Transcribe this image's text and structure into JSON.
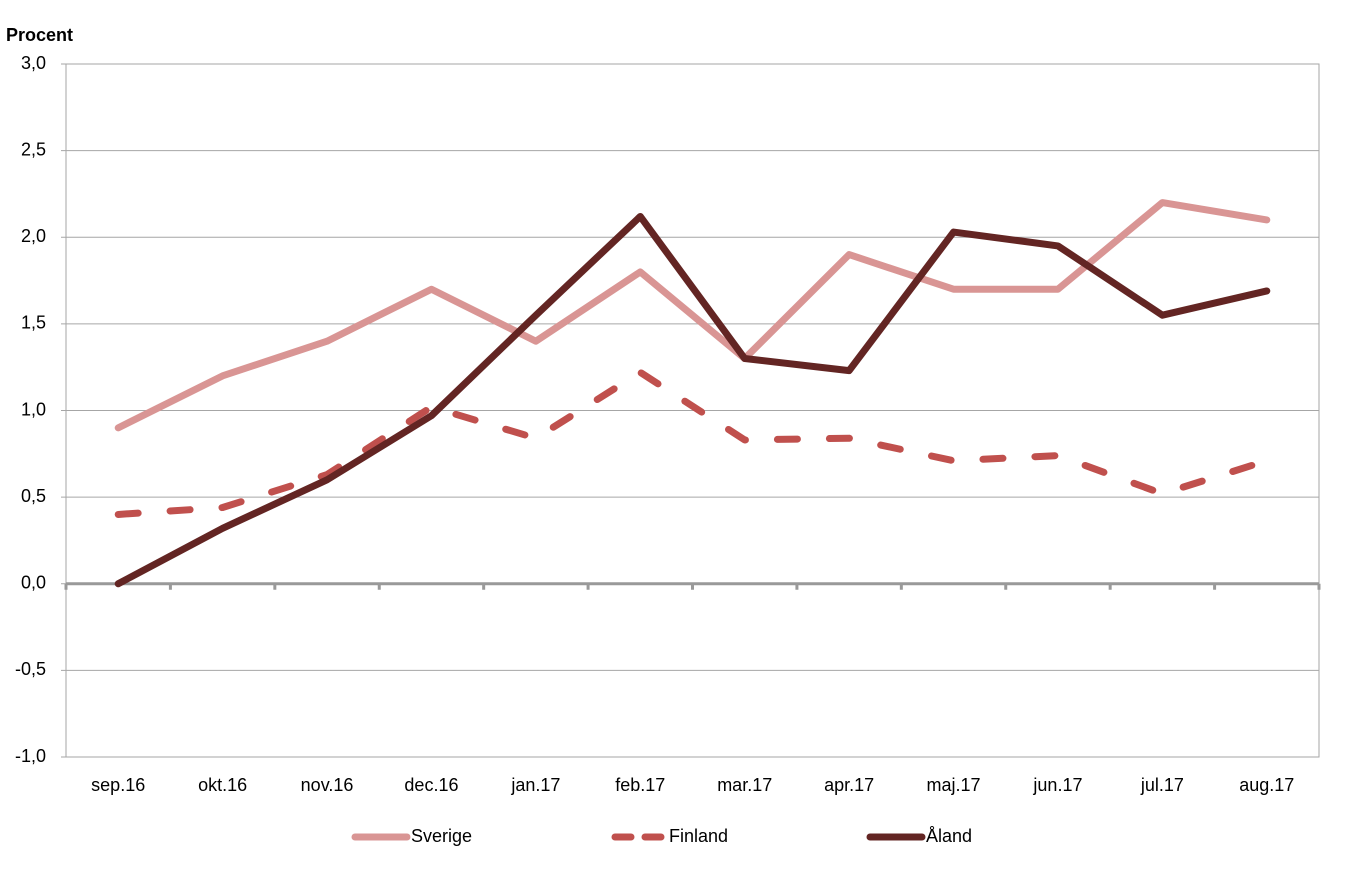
{
  "chart_data": {
    "type": "line",
    "y_label": "Procent",
    "categories": [
      "sep.16",
      "okt.16",
      "nov.16",
      "dec.16",
      "jan.17",
      "feb.17",
      "mar.17",
      "apr.17",
      "maj.17",
      "jun.17",
      "jul.17",
      "aug.17"
    ],
    "series": [
      {
        "name": "Sverige",
        "color": "#d99594",
        "style": "solid",
        "values": [
          0.9,
          1.2,
          1.4,
          1.7,
          1.4,
          1.8,
          1.3,
          1.9,
          1.7,
          1.7,
          2.2,
          2.1
        ]
      },
      {
        "name": "Finland",
        "color": "#c0504d",
        "style": "dashed",
        "values": [
          0.4,
          0.44,
          0.63,
          1.02,
          0.84,
          1.22,
          0.83,
          0.84,
          0.71,
          0.74,
          0.52,
          0.71
        ]
      },
      {
        "name": "Åland",
        "color": "#632523",
        "style": "solid",
        "values": [
          0.0,
          0.32,
          0.6,
          0.97,
          1.55,
          2.12,
          1.3,
          1.23,
          2.03,
          1.95,
          1.55,
          1.69
        ]
      }
    ],
    "ylim": [
      -1,
      3
    ],
    "yticks": [
      {
        "value": -1,
        "label": "-1,0"
      },
      {
        "value": -0.5,
        "label": "-0,5"
      },
      {
        "value": 0,
        "label": "0,0"
      },
      {
        "value": 0.5,
        "label": "0,5"
      },
      {
        "value": 1,
        "label": "1,0"
      },
      {
        "value": 1.5,
        "label": "1,5"
      },
      {
        "value": 2,
        "label": "2,0"
      },
      {
        "value": 2.5,
        "label": "2,5"
      },
      {
        "value": 3,
        "label": "3,0"
      }
    ],
    "grid": true
  }
}
